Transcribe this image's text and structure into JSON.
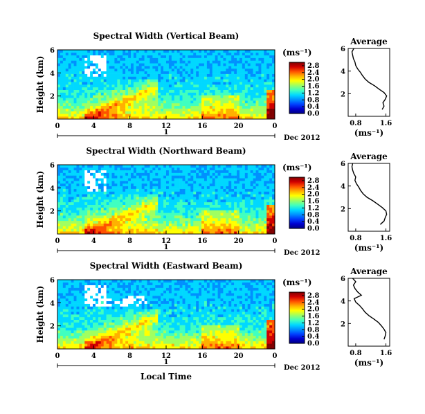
{
  "colors": {
    "scale": [
      "#000080",
      "#0000d0",
      "#0040ff",
      "#0090ff",
      "#00d8ff",
      "#40ffc0",
      "#a0ff60",
      "#ffff00",
      "#ffb000",
      "#ff5000",
      "#d00000",
      "#800000"
    ],
    "missing": "#ffffff"
  },
  "footer": {
    "xlabel": "Local Time"
  },
  "chart_data": [
    {
      "type": "heatmap",
      "title": "Spectral Width (Vertical Beam)",
      "ylabel": "Height (km)",
      "yticks": [
        "2",
        "4",
        "6"
      ],
      "ylim": [
        0,
        6
      ],
      "xticks": [
        "0",
        "4",
        "8",
        "12",
        "16",
        "20",
        "0"
      ],
      "xlim": [
        0,
        24
      ],
      "day_marker": "1",
      "date_label": "Dec 2012",
      "colorbar": {
        "unit": "(ms⁻¹)",
        "ticks": [
          "0.0",
          "0.4",
          "0.8",
          "1.2",
          "1.6",
          "2.0",
          "2.4",
          "2.8"
        ],
        "range": [
          0,
          3.0
        ]
      },
      "profile": {
        "title": "Average",
        "xlabel": "(ms⁻¹)",
        "xticks": [
          "0.8",
          "1.6"
        ],
        "xlim": [
          0.6,
          1.7
        ],
        "yticks": [
          "2",
          "4",
          "6"
        ],
        "ylim": [
          0,
          6
        ],
        "heights": [
          0.6,
          0.9,
          1.2,
          1.5,
          1.8,
          2.1,
          2.4,
          2.7,
          3.0,
          3.3,
          3.6,
          3.9,
          4.2,
          4.5,
          4.8,
          5.1,
          5.4,
          5.7,
          6.0
        ],
        "values": [
          1.5,
          1.55,
          1.52,
          1.58,
          1.62,
          1.55,
          1.42,
          1.3,
          1.15,
          1.05,
          0.98,
          0.92,
          0.85,
          0.8,
          0.78,
          0.74,
          0.72,
          0.7,
          0.75
        ]
      }
    },
    {
      "type": "heatmap",
      "title": "Spectral Width (Northward Beam)",
      "ylabel": "Height (km)",
      "yticks": [
        "2",
        "4",
        "6"
      ],
      "ylim": [
        0,
        6
      ],
      "xticks": [
        "0",
        "4",
        "8",
        "12",
        "16",
        "20",
        "0"
      ],
      "xlim": [
        0,
        24
      ],
      "day_marker": "1",
      "date_label": "Dec 2012",
      "colorbar": {
        "unit": "(ms⁻¹)",
        "ticks": [
          "0.0",
          "0.4",
          "0.8",
          "1.2",
          "1.6",
          "2.0",
          "2.4",
          "2.8"
        ],
        "range": [
          0,
          3.0
        ]
      },
      "profile": {
        "title": "Average",
        "xlabel": "(ms⁻¹)",
        "xticks": [
          "0.8",
          "1.6"
        ],
        "xlim": [
          0.6,
          1.7
        ],
        "yticks": [
          "2",
          "4",
          "6"
        ],
        "ylim": [
          0,
          6
        ],
        "heights": [
          0.6,
          0.9,
          1.2,
          1.5,
          1.8,
          2.1,
          2.4,
          2.7,
          3.0,
          3.3,
          3.6,
          3.9,
          4.2,
          4.5,
          4.8,
          5.1,
          5.4,
          5.7,
          6.0
        ],
        "values": [
          1.45,
          1.55,
          1.58,
          1.62,
          1.6,
          1.5,
          1.38,
          1.25,
          1.1,
          1.0,
          0.93,
          0.88,
          0.82,
          0.78,
          0.8,
          0.75,
          0.72,
          0.7,
          0.72
        ]
      }
    },
    {
      "type": "heatmap",
      "title": "Spectral Width (Eastward Beam)",
      "ylabel": "Height (km)",
      "yticks": [
        "2",
        "4",
        "6"
      ],
      "ylim": [
        0,
        6
      ],
      "xticks": [
        "0",
        "4",
        "8",
        "12",
        "16",
        "20",
        "0"
      ],
      "xlim": [
        0,
        24
      ],
      "day_marker": "1",
      "date_label": "Dec 2012",
      "colorbar": {
        "unit": "(ms⁻¹)",
        "ticks": [
          "0.0",
          "0.4",
          "0.8",
          "1.2",
          "1.6",
          "2.0",
          "2.4",
          "2.8"
        ],
        "range": [
          0,
          3.0
        ]
      },
      "profile": {
        "title": "Average",
        "xlabel": "(ms⁻¹)",
        "xticks": [
          "0.8",
          "1.6"
        ],
        "xlim": [
          0.6,
          1.7
        ],
        "yticks": [
          "2",
          "4",
          "6"
        ],
        "ylim": [
          0,
          6
        ],
        "heights": [
          0.6,
          0.9,
          1.2,
          1.5,
          1.8,
          2.1,
          2.4,
          2.7,
          3.0,
          3.3,
          3.6,
          3.9,
          4.2,
          4.5,
          4.8,
          5.1,
          5.4,
          5.7,
          6.0
        ],
        "values": [
          1.55,
          1.58,
          1.6,
          1.55,
          1.48,
          1.4,
          1.28,
          1.15,
          1.05,
          0.98,
          0.9,
          0.8,
          0.76,
          0.95,
          0.85,
          0.78,
          0.74,
          0.8,
          0.72
        ]
      }
    }
  ]
}
